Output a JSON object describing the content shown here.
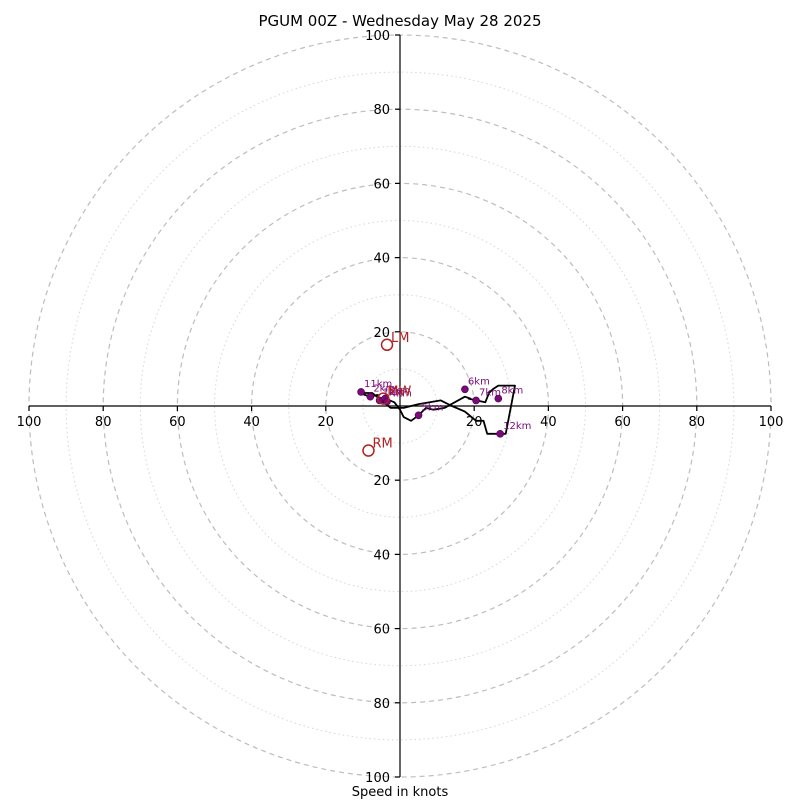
{
  "chart_data": {
    "type": "hodograph",
    "title": "PGUM 00Z - Wednesday May 28 2025",
    "xlabel": "Speed in knots",
    "ylabel": "",
    "axis_range": [
      -100,
      100
    ],
    "ring_major": [
      20,
      40,
      60,
      80,
      100
    ],
    "ring_minor": [
      10,
      30,
      50,
      70,
      90
    ],
    "tick_values": [
      20,
      40,
      60,
      80,
      100
    ],
    "hodograph": {
      "u": [
        0.0,
        -2.5,
        -7.5,
        -10.5,
        -9.5,
        -8.0,
        -6.0,
        -5.5,
        -4.5,
        -4.0,
        -1.5,
        0.0,
        1.0,
        3.0,
        5.0,
        7.0,
        9.0,
        12.0,
        17.5,
        19.0,
        18.5,
        20.5,
        23.0,
        24.0,
        25.0,
        26.5,
        28.0,
        31.0,
        28.5,
        27.5,
        27.0,
        25.5,
        24.0,
        23.5,
        22.5,
        20.5,
        17.5,
        14.0,
        12.0,
        11.0,
        8.0,
        5.0,
        3.0,
        1.0,
        0.0
      ],
      "v": [
        -0.5,
        -0.5,
        3.5,
        3.5,
        3.0,
        2.5,
        3.0,
        1.5,
        1.0,
        2.0,
        1.0,
        -1.0,
        -3.0,
        -4.0,
        -2.5,
        -0.5,
        -1.0,
        -0.5,
        2.5,
        2.0,
        2.0,
        1.5,
        1.0,
        3.5,
        4.5,
        5.5,
        5.5,
        5.5,
        -7.5,
        -7.5,
        -7.5,
        -7.5,
        -7.5,
        -7.5,
        -4.0,
        -4.0,
        -1.5,
        0.0,
        1.0,
        1.5,
        1.0,
        0.5,
        0.0,
        -0.5,
        -0.5
      ]
    },
    "height_markers": [
      {
        "label": "1km",
        "u": -5.5,
        "v": 1.5
      },
      {
        "label": "2km",
        "u": -8.0,
        "v": 2.5
      },
      {
        "label": "3km",
        "u": -4.0,
        "v": 2.0
      },
      {
        "label": "4km",
        "u": -3.5,
        "v": 1.2
      },
      {
        "label": "5km",
        "u": 5.0,
        "v": -2.5
      },
      {
        "label": "6km",
        "u": 17.5,
        "v": 4.5
      },
      {
        "label": "7km",
        "u": 20.5,
        "v": 1.5
      },
      {
        "label": "8km",
        "u": 26.5,
        "v": 2.0
      },
      {
        "label": "11km",
        "u": -10.5,
        "v": 3.8
      },
      {
        "label": "12km",
        "u": 27.0,
        "v": -7.5
      }
    ],
    "storm_motion": [
      {
        "label": "LM",
        "u": -3.5,
        "v": 16.5
      },
      {
        "label": "MW",
        "u": -4.5,
        "v": 2.0
      },
      {
        "label": "RM",
        "u": -8.5,
        "v": -12.0
      }
    ],
    "colors": {
      "hodograph_line": "#000000",
      "height_markers": "#7a0a7a",
      "storm_motion": "#b22222",
      "rings": "#bdbdbd"
    },
    "grid": true
  }
}
